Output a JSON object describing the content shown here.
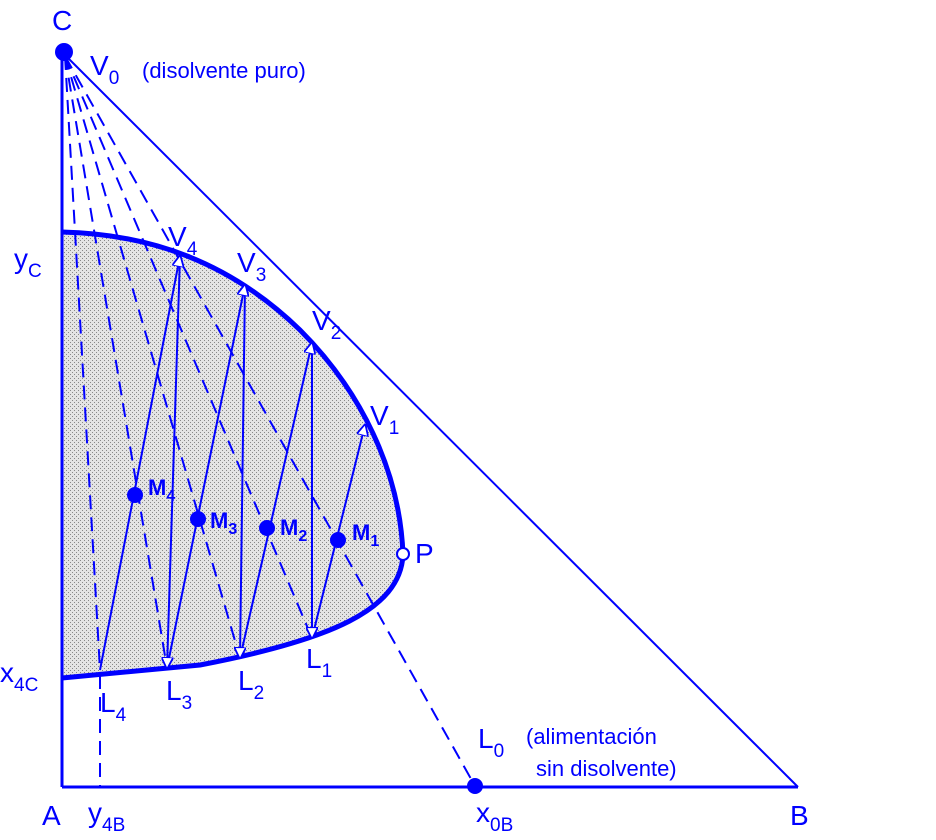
{
  "vertices": {
    "c": "C",
    "a": "A",
    "b": "B"
  },
  "solvent": {
    "label": "V",
    "sub": "0",
    "note": "(disolvente puro)"
  },
  "feed": {
    "label": "L",
    "sub": "0",
    "note_lines": [
      "(alimentación",
      "sin disolvente)"
    ]
  },
  "axis_labels": [
    {
      "label": "y",
      "sub": "C"
    },
    {
      "label": "x",
      "sub": "4C"
    },
    {
      "label": "y",
      "sub": "4B"
    },
    {
      "label": "x",
      "sub": "0B"
    }
  ],
  "extracts": [
    {
      "label": "V",
      "sub": "1"
    },
    {
      "label": "V",
      "sub": "2"
    },
    {
      "label": "V",
      "sub": "3"
    },
    {
      "label": "V",
      "sub": "4"
    }
  ],
  "raffinates": [
    {
      "label": "L",
      "sub": "1"
    },
    {
      "label": "L",
      "sub": "2"
    },
    {
      "label": "L",
      "sub": "3"
    },
    {
      "label": "L",
      "sub": "4"
    }
  ],
  "mixtures": [
    {
      "label": "M",
      "sub": "1"
    },
    {
      "label": "M",
      "sub": "2"
    },
    {
      "label": "M",
      "sub": "3"
    },
    {
      "label": "M",
      "sub": "4"
    }
  ],
  "plait_point": "P"
}
